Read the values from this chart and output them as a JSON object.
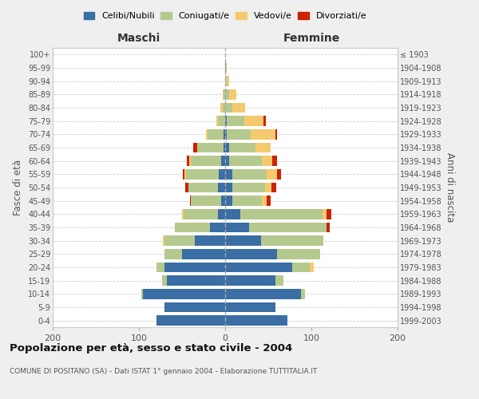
{
  "age_groups": [
    "0-4",
    "5-9",
    "10-14",
    "15-19",
    "20-24",
    "25-29",
    "30-34",
    "35-39",
    "40-44",
    "45-49",
    "50-54",
    "55-59",
    "60-64",
    "65-69",
    "70-74",
    "75-79",
    "80-84",
    "85-89",
    "90-94",
    "95-99",
    "100+"
  ],
  "birth_years": [
    "1999-2003",
    "1994-1998",
    "1989-1993",
    "1984-1988",
    "1979-1983",
    "1974-1978",
    "1969-1973",
    "1964-1968",
    "1959-1963",
    "1954-1958",
    "1949-1953",
    "1944-1948",
    "1939-1943",
    "1934-1938",
    "1929-1933",
    "1924-1928",
    "1919-1923",
    "1914-1918",
    "1909-1913",
    "1904-1908",
    "≤ 1903"
  ],
  "colors": {
    "celibi": "#3a6ea5",
    "coniugati": "#b5c98e",
    "vedovi": "#f5c96e",
    "divorziati": "#cc2200"
  },
  "maschi": {
    "celibi": [
      80,
      70,
      95,
      68,
      70,
      50,
      35,
      18,
      8,
      5,
      8,
      7,
      5,
      2,
      2,
      0,
      0,
      0,
      0,
      0,
      0
    ],
    "coniugati": [
      0,
      0,
      2,
      5,
      10,
      20,
      35,
      40,
      40,
      35,
      35,
      38,
      35,
      30,
      18,
      8,
      3,
      2,
      0,
      0,
      0
    ],
    "vedovi": [
      0,
      0,
      0,
      0,
      0,
      0,
      2,
      0,
      2,
      0,
      0,
      2,
      2,
      0,
      2,
      2,
      3,
      1,
      0,
      0,
      0
    ],
    "divorziati": [
      0,
      0,
      0,
      0,
      0,
      0,
      0,
      0,
      0,
      1,
      3,
      2,
      2,
      5,
      0,
      0,
      0,
      0,
      0,
      0,
      0
    ]
  },
  "femmine": {
    "celibi": [
      72,
      58,
      88,
      58,
      78,
      60,
      42,
      28,
      18,
      8,
      8,
      8,
      5,
      5,
      2,
      2,
      0,
      0,
      0,
      1,
      0
    ],
    "coniugati": [
      0,
      0,
      5,
      10,
      20,
      50,
      72,
      90,
      95,
      35,
      38,
      40,
      38,
      30,
      28,
      20,
      8,
      5,
      2,
      0,
      0
    ],
    "vedovi": [
      0,
      0,
      0,
      0,
      5,
      0,
      0,
      0,
      5,
      5,
      8,
      12,
      12,
      18,
      28,
      22,
      15,
      8,
      3,
      1,
      0
    ],
    "divorziati": [
      0,
      0,
      0,
      0,
      0,
      0,
      0,
      3,
      5,
      5,
      5,
      5,
      5,
      0,
      2,
      3,
      0,
      0,
      0,
      0,
      0
    ]
  },
  "xlim": 200,
  "title": "Popolazione per età, sesso e stato civile - 2004",
  "subtitle": "COMUNE DI POSITANO (SA) - Dati ISTAT 1° gennaio 2004 - Elaborazione TUTTITALIA.IT",
  "ylabel": "Fasce di età",
  "ylabel_right": "Anni di nascita",
  "xlabel_maschi": "Maschi",
  "xlabel_femmine": "Femmine",
  "bg_color": "#efefef",
  "plot_bg": "#ffffff",
  "legend_labels": [
    "Celibi/Nubili",
    "Coniugati/e",
    "Vedovi/e",
    "Divorziati/e"
  ]
}
